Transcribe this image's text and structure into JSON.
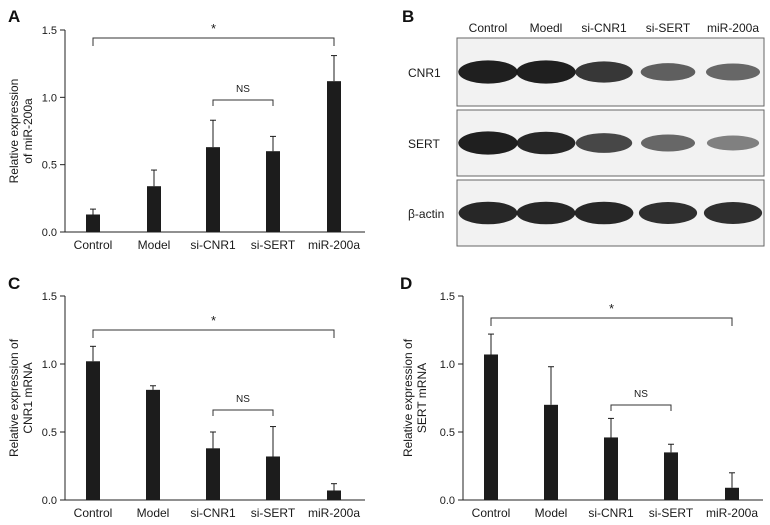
{
  "panels": [
    {
      "letter": "A",
      "ylabel_lines": [
        "Relative expression",
        "of miR-200a"
      ],
      "brackets": [
        {
          "from": 0,
          "to": 4,
          "label": "*"
        },
        {
          "from": 2,
          "to": 3,
          "label": "NS"
        }
      ]
    },
    {
      "letter": "C",
      "ylabel_lines": [
        "Relative expression of",
        "CNR1 mRNA"
      ],
      "brackets": [
        {
          "from": 0,
          "to": 4,
          "label": "*"
        },
        {
          "from": 2,
          "to": 3,
          "label": "NS"
        }
      ]
    },
    {
      "letter": "D",
      "ylabel_lines": [
        "Relative expression of",
        "SERT mRNA"
      ],
      "brackets": [
        {
          "from": 0,
          "to": 4,
          "label": "*"
        },
        {
          "from": 2,
          "to": 3,
          "label": "NS"
        }
      ]
    }
  ],
  "blot": {
    "letter": "B",
    "columns": [
      "Control",
      "Moedl",
      "si-CNR1",
      "si-SERT",
      "miR-200a"
    ],
    "rows": [
      {
        "label": "CNR1",
        "intensity": [
          0.95,
          0.95,
          0.8,
          0.55,
          0.5
        ]
      },
      {
        "label": "SERT",
        "intensity": [
          0.95,
          0.9,
          0.7,
          0.5,
          0.35
        ]
      },
      {
        "label": "β-actin",
        "intensity": [
          0.9,
          0.9,
          0.9,
          0.85,
          0.85
        ]
      }
    ]
  },
  "chart_data": [
    {
      "type": "bar",
      "panel": "A",
      "categories": [
        "Control",
        "Model",
        "si-CNR1",
        "si-SERT",
        "miR-200a"
      ],
      "values": [
        0.13,
        0.34,
        0.63,
        0.6,
        1.12
      ],
      "errors": [
        0.04,
        0.12,
        0.2,
        0.11,
        0.19
      ],
      "ylabel": "Relative expression of miR-200a",
      "ylim": [
        0,
        1.5
      ],
      "yticks": [
        "0.0",
        "0.5",
        "1.0",
        "1.5"
      ]
    },
    {
      "type": "bar",
      "panel": "C",
      "categories": [
        "Control",
        "Model",
        "si-CNR1",
        "si-SERT",
        "miR-200a"
      ],
      "values": [
        1.02,
        0.81,
        0.38,
        0.32,
        0.07
      ],
      "errors": [
        0.11,
        0.03,
        0.12,
        0.22,
        0.05
      ],
      "ylabel": "Relative expression of CNR1 mRNA",
      "ylim": [
        0,
        1.5
      ],
      "yticks": [
        "0.0",
        "0.5",
        "1.0",
        "1.5"
      ]
    },
    {
      "type": "bar",
      "panel": "D",
      "categories": [
        "Control",
        "Model",
        "si-CNR1",
        "si-SERT",
        "miR-200a"
      ],
      "values": [
        1.07,
        0.7,
        0.46,
        0.35,
        0.09
      ],
      "errors": [
        0.15,
        0.28,
        0.14,
        0.06,
        0.11
      ],
      "ylabel": "Relative expression of SERT mRNA",
      "ylim": [
        0,
        1.5
      ],
      "yticks": [
        "0.0",
        "0.5",
        "1.0",
        "1.5"
      ]
    }
  ]
}
